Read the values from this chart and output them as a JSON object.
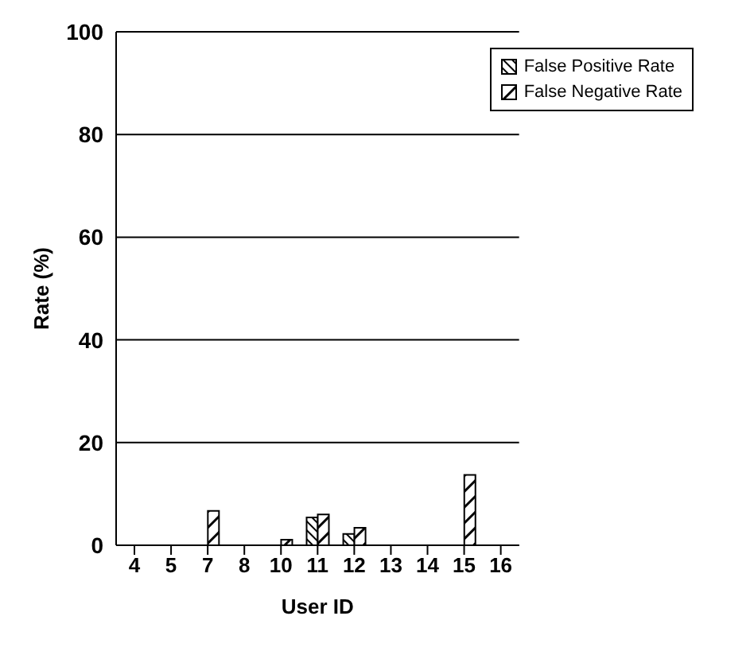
{
  "chart_data": {
    "type": "bar",
    "xlabel": "User ID",
    "ylabel": "Rate (%)",
    "categories": [
      "4",
      "5",
      "7",
      "8",
      "10",
      "11",
      "12",
      "13",
      "14",
      "15",
      "16"
    ],
    "series": [
      {
        "name": "False Positive Rate",
        "color": "#000000",
        "values": [
          0,
          0,
          0,
          0,
          0,
          5.4,
          2.2,
          0,
          0,
          0,
          0
        ]
      },
      {
        "name": "False Negative Rate",
        "color": "#000000",
        "values": [
          0,
          0,
          6.7,
          0,
          1.1,
          6.0,
          3.4,
          0,
          0,
          13.7,
          0
        ]
      }
    ],
    "ylim": [
      0,
      100
    ],
    "yticks": [
      0,
      20,
      40,
      60,
      80,
      100
    ],
    "grid": "y",
    "legend": "top right"
  }
}
